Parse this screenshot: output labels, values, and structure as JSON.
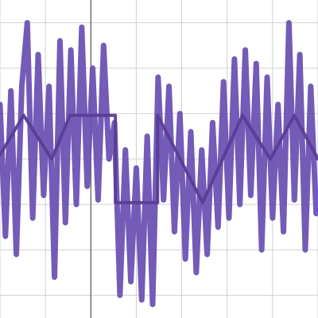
{
  "chart_data": {
    "type": "line",
    "xlim": [
      -2,
      5
    ],
    "ylim": [
      0.5,
      7.5
    ],
    "xticks": [
      -2,
      -1,
      0,
      1,
      2,
      3,
      4,
      5
    ],
    "yticks": [
      1,
      2,
      3,
      4,
      5,
      6,
      7
    ],
    "grid": true,
    "axis_x": 0,
    "series": [
      {
        "color": "#6b52b3",
        "width": 7,
        "x": [
          -2,
          -1.88,
          -1.76,
          -1.64,
          -1.52,
          -1.4,
          -1.28,
          -1.16,
          -1.04,
          -0.92,
          -0.8,
          -0.68,
          -0.56,
          -0.44,
          -0.32,
          -0.2,
          -0.08,
          0.04,
          0.16,
          0.28,
          0.4,
          0.52,
          0.64,
          0.76,
          0.88,
          1,
          1.12,
          1.24,
          1.36,
          1.48,
          1.6,
          1.72,
          1.84,
          1.96,
          2.08,
          2.2,
          2.32,
          2.44,
          2.56,
          2.68,
          2.8,
          2.92,
          3.04,
          3.16,
          3.28,
          3.4,
          3.52,
          3.64,
          3.76,
          3.88,
          4,
          4.12,
          4.24,
          4.36,
          4.48,
          4.6,
          4.72,
          4.84,
          4.96
        ],
        "values": [
          5.2,
          2.3,
          5.5,
          1.9,
          5.6,
          7.0,
          2.7,
          6.3,
          3.2,
          5.6,
          1.4,
          6.6,
          2.6,
          6.4,
          3.0,
          6.9,
          3.4,
          6.0,
          3.1,
          6.5,
          4.0,
          4.8,
          1.0,
          4.2,
          1.3,
          3.8,
          0.9,
          4.5,
          0.8,
          5.8,
          3.1,
          5.6,
          2.4,
          5.0,
          1.8,
          4.6,
          1.5,
          4.2,
          1.9,
          4.8,
          2.5,
          5.7,
          2.7,
          6.2,
          3.0,
          6.4,
          3.2,
          6.1,
          2.0,
          5.8,
          2.7,
          5.2,
          2.4,
          7.0,
          3.1,
          6.3,
          2.0,
          5.6,
          2.8
        ]
      },
      {
        "color": "#5a3d96",
        "width": 4,
        "x": [
          -2,
          -1.48,
          -0.86,
          -0.46,
          0.54,
          0.54,
          1.47,
          1.47,
          2.46,
          3.34,
          3.95,
          4.48,
          5
        ],
        "values": [
          4.09,
          4.96,
          4.0,
          4.96,
          4.96,
          3.04,
          3.04,
          4.96,
          3.04,
          4.96,
          4.0,
          4.96,
          4.0
        ]
      }
    ]
  }
}
